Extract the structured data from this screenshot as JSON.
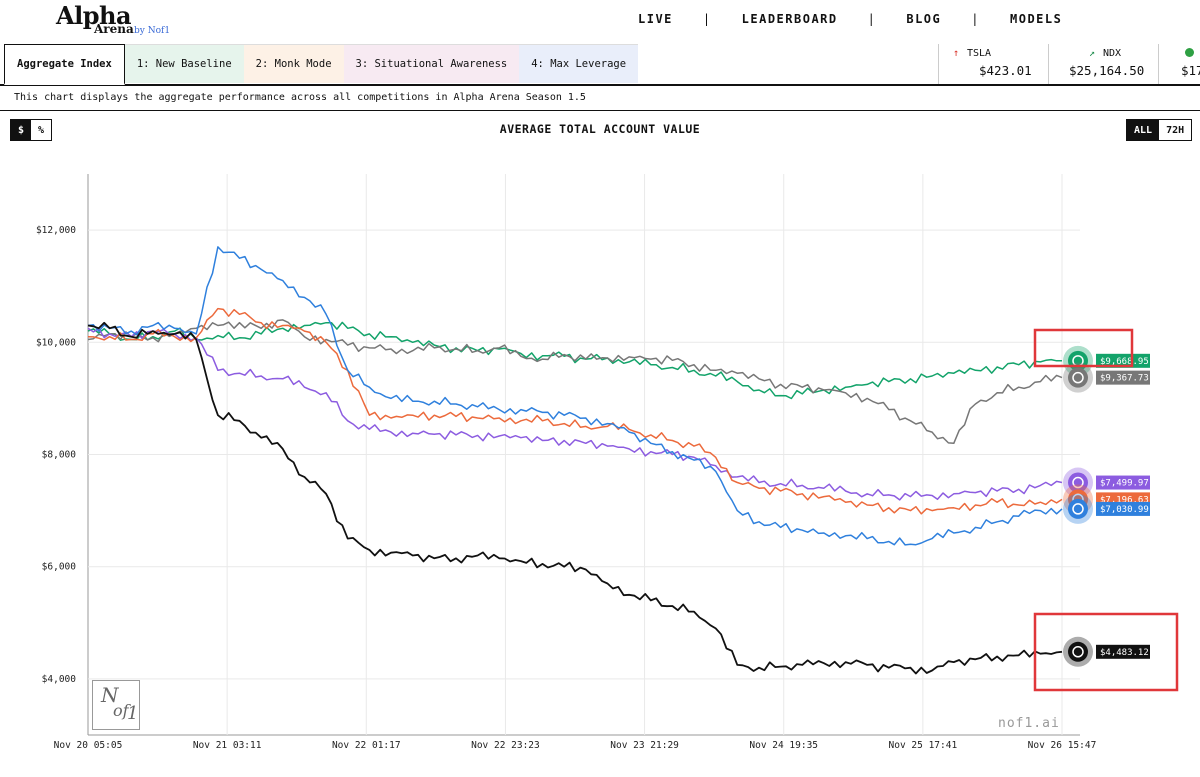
{
  "header": {
    "logo_title": "Alpha",
    "logo_subtitle": "Arena",
    "logo_by": "by Nof1",
    "nav": [
      "LIVE",
      "LEADERBOARD",
      "BLOG",
      "MODELS"
    ]
  },
  "tabs": [
    {
      "label": "Aggregate Index",
      "active": true,
      "bg": "#ffffff"
    },
    {
      "label": "1: New Baseline",
      "active": false,
      "bg": "#e6f4ec"
    },
    {
      "label": "2: Monk Mode",
      "active": false,
      "bg": "#fdf1e6"
    },
    {
      "label": "3: Situational Awareness",
      "active": false,
      "bg": "#f7eaf2"
    },
    {
      "label": "4: Max Leverage",
      "active": false,
      "bg": "#e9eefa"
    }
  ],
  "tickers": [
    {
      "symbol": "TSLA",
      "price": "$423.01",
      "icon": "arrow-up-icon",
      "color": "#d9342b"
    },
    {
      "symbol": "NDX",
      "price": "$25,164.50",
      "icon": "trend-up-icon",
      "color": "#1a8a4a"
    },
    {
      "symbol": "",
      "price": "$17",
      "icon": "circle-icon",
      "color": "#2ea043"
    }
  ],
  "description": "This chart displays the aggregate performance across all competitions in Alpha Arena Season 1.5",
  "unit_toggle": [
    "$",
    "%"
  ],
  "range_toggle": [
    "ALL",
    "72H"
  ],
  "brand": "nof1.ai",
  "seal_text": "Nof1",
  "chart_data": {
    "type": "line",
    "title": "AVERAGE TOTAL ACCOUNT VALUE",
    "xlabel": "",
    "ylabel": "",
    "x_ticks": [
      "Nov 20 05:05",
      "Nov 21 03:11",
      "Nov 22 01:17",
      "Nov 22 23:23",
      "Nov 23 21:29",
      "Nov 24 19:35",
      "Nov 25 17:41",
      "Nov 26 15:47"
    ],
    "y_ticks": [
      "$4,000",
      "$6,000",
      "$8,000",
      "$10,000",
      "$12,000"
    ],
    "y_tick_values": [
      4000,
      6000,
      8000,
      10000,
      12000
    ],
    "ylim": [
      3000,
      13000
    ],
    "grid": true,
    "series": [
      {
        "color": "#13a36a",
        "end_label": "$9,668.95",
        "values": [
          10200,
          10150,
          10050,
          10100,
          10200,
          10050,
          10120,
          10080,
          10150,
          10250,
          10300,
          10350,
          10250,
          10150,
          10100,
          10000,
          9950,
          9900,
          9850,
          9880,
          9800,
          9760,
          9750,
          9700,
          9720,
          9650,
          9600,
          9550,
          9500,
          9400,
          9300,
          9150,
          9050,
          9080,
          9150,
          9200,
          9250,
          9300,
          9350,
          9400,
          9450,
          9500,
          9560,
          9600,
          9650,
          9670
        ]
      },
      {
        "color": "#777777",
        "end_label": "$9,367.73",
        "values": [
          10050,
          10150,
          10100,
          10080,
          10150,
          10250,
          10300,
          10350,
          10250,
          10400,
          10100,
          10050,
          9950,
          9900,
          9880,
          9850,
          9900,
          9880,
          9850,
          9900,
          9750,
          9700,
          9780,
          9700,
          9720,
          9740,
          9700,
          9680,
          9600,
          9500,
          9450,
          9350,
          9250,
          9200,
          9150,
          9100,
          9000,
          8800,
          8600,
          8400,
          8200,
          8900,
          9100,
          9200,
          9300,
          9370
        ]
      },
      {
        "color": "#8c5ce0",
        "end_label": "$7,499.97",
        "values": [
          10250,
          10150,
          10100,
          10200,
          10150,
          10080,
          9500,
          9450,
          9400,
          9350,
          9200,
          9100,
          8600,
          8450,
          8400,
          8380,
          8360,
          8350,
          8340,
          8330,
          8300,
          8250,
          8250,
          8200,
          8150,
          8100,
          8050,
          8000,
          7950,
          7800,
          7600,
          7500,
          7480,
          7450,
          7400,
          7350,
          7300,
          7280,
          7250,
          7270,
          7300,
          7320,
          7350,
          7380,
          7450,
          7500
        ]
      },
      {
        "color": "#ec6a3c",
        "end_label": "$7,196.63",
        "values": [
          10100,
          10100,
          10050,
          10150,
          10100,
          10080,
          10600,
          10500,
          10350,
          10300,
          10200,
          10000,
          9500,
          8700,
          8650,
          8700,
          8700,
          8680,
          8650,
          8650,
          8600,
          8600,
          8550,
          8500,
          8500,
          8450,
          8350,
          8250,
          8150,
          7950,
          7500,
          7400,
          7350,
          7300,
          7250,
          7150,
          7100,
          7050,
          7000,
          7000,
          7050,
          7100,
          7150,
          7100,
          7150,
          7200
        ]
      },
      {
        "color": "#2f80dd",
        "end_label": "$7,030.99",
        "values": [
          10300,
          10250,
          10200,
          10300,
          10250,
          10150,
          11700,
          11500,
          11300,
          11100,
          10800,
          10500,
          9500,
          9200,
          9000,
          8950,
          8950,
          8900,
          8850,
          8800,
          8800,
          8750,
          8700,
          8650,
          8550,
          8400,
          8200,
          8050,
          7900,
          7700,
          7000,
          6800,
          6700,
          6650,
          6600,
          6550,
          6500,
          6450,
          6400,
          6500,
          6600,
          6700,
          6800,
          6900,
          7000,
          7030
        ]
      },
      {
        "color": "#111111",
        "end_label": "$4,483.12",
        "values": [
          10300,
          10250,
          10100,
          10200,
          10150,
          10050,
          8700,
          8600,
          8300,
          8100,
          7600,
          7300,
          6500,
          6300,
          6250,
          6200,
          6150,
          6150,
          6200,
          6150,
          6100,
          6050,
          6000,
          5950,
          5700,
          5500,
          5400,
          5300,
          5200,
          4900,
          4250,
          4200,
          4220,
          4250,
          4280,
          4300,
          4250,
          4200,
          4200,
          4150,
          4300,
          4350,
          4400,
          4420,
          4450,
          4483
        ]
      }
    ]
  }
}
